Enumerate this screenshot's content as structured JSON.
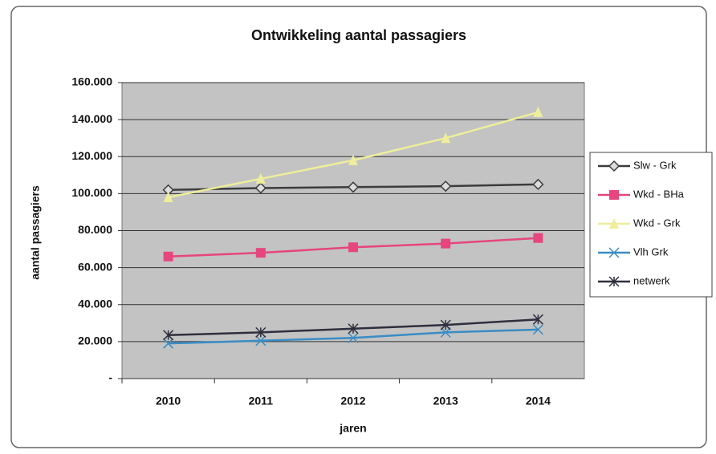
{
  "chart_data": {
    "type": "line",
    "title": "Ontwikkeling aantal passagiers",
    "x_label": "jaren",
    "y_label": "aantal passagiers",
    "categories": [
      "2010",
      "2011",
      "2012",
      "2013",
      "2014"
    ],
    "series": [
      {
        "name": "Slw - Grk",
        "color": "#3c3c3c",
        "marker": "diamond",
        "values": [
          102000,
          103000,
          103500,
          104000,
          105000
        ]
      },
      {
        "name": "Wkd - BHa",
        "color": "#e6457e",
        "marker": "square",
        "values": [
          66000,
          68000,
          71000,
          73000,
          76000
        ]
      },
      {
        "name": "Wkd - Grk",
        "color": "#eeee9c",
        "marker": "triangle",
        "values": [
          98000,
          108000,
          118000,
          130000,
          144000
        ]
      },
      {
        "name": "Vlh Grk",
        "color": "#3a8cc4",
        "marker": "x",
        "values": [
          19000,
          20500,
          22000,
          25000,
          26500
        ]
      },
      {
        "name": "netwerk",
        "color": "#2e2e3e",
        "marker": "star",
        "values": [
          23500,
          25000,
          27000,
          29000,
          32000
        ]
      }
    ],
    "ylim": [
      0,
      160000
    ],
    "yticks": [
      {
        "value": 0,
        "label": "-"
      },
      {
        "value": 20000,
        "label": "20.000"
      },
      {
        "value": 40000,
        "label": "40.000"
      },
      {
        "value": 60000,
        "label": "60.000"
      },
      {
        "value": 80000,
        "label": "80.000"
      },
      {
        "value": 100000,
        "label": "100.000"
      },
      {
        "value": 120000,
        "label": "120.000"
      },
      {
        "value": 140000,
        "label": "140.000"
      },
      {
        "value": 160000,
        "label": "160.000"
      }
    ],
    "grid": true,
    "legend": "right"
  }
}
